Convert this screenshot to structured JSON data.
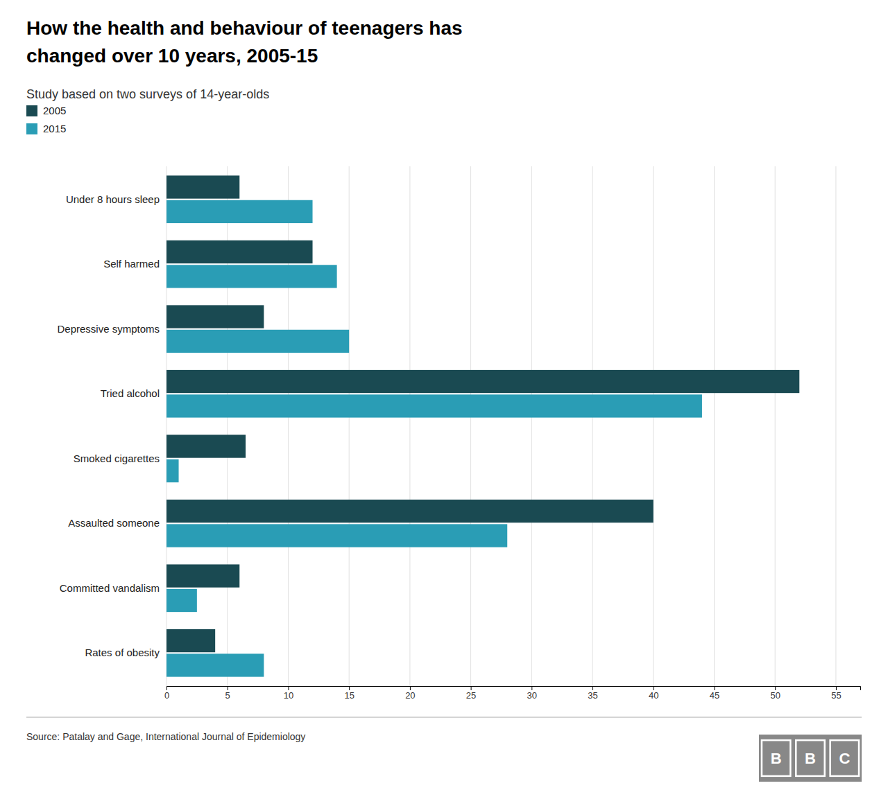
{
  "chart_data": {
    "type": "bar",
    "orientation": "horizontal",
    "title": [
      "How the health and behaviour of teenagers has",
      "changed over 10 years, 2005-15"
    ],
    "subtitle": "Study based on two surveys of 14-year-olds",
    "categories": [
      "Under 8 hours sleep",
      "Self harmed",
      "Depressive symptoms",
      "Tried alcohol",
      "Smoked cigarettes",
      "Assaulted someone",
      "Committed vandalism",
      "Rates of obesity"
    ],
    "series": [
      {
        "name": "2005",
        "color": "#1a4a52",
        "values": [
          6,
          12,
          8,
          52,
          6.5,
          40,
          6,
          4
        ]
      },
      {
        "name": "2015",
        "color": "#2a9db5",
        "values": [
          12,
          14,
          15,
          44,
          1,
          28,
          2.5,
          8
        ]
      }
    ],
    "xlim": [
      0,
      57
    ],
    "xticks": [
      0,
      5,
      10,
      15,
      20,
      25,
      30,
      35,
      40,
      45,
      50,
      55
    ],
    "grid": true,
    "legend": "top-left",
    "source": "Source: Patalay and Gage, International Journal of Epidemiology",
    "logo": [
      "B",
      "B",
      "C"
    ]
  }
}
